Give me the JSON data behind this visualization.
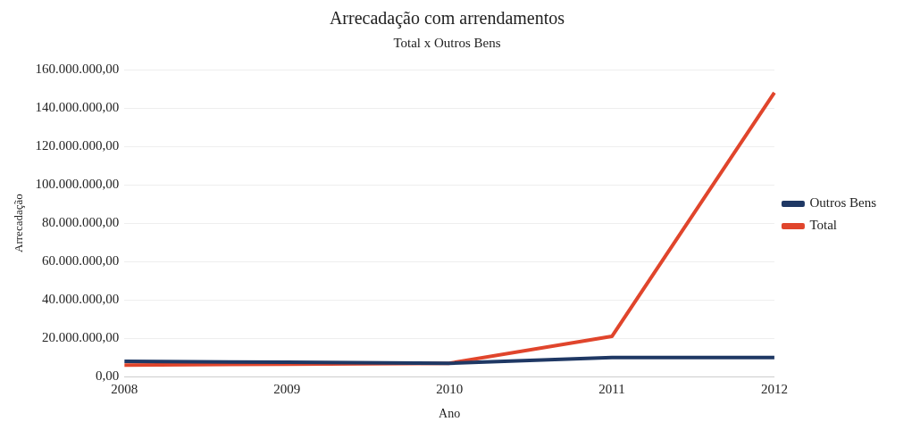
{
  "chart_data": {
    "type": "line",
    "title": "Arrecadação com arrendamentos",
    "subtitle": "Total x Outros Bens",
    "xlabel": "Ano",
    "ylabel": "Arrecadação",
    "categories": [
      "2008",
      "2009",
      "2010",
      "2011",
      "2012"
    ],
    "series": [
      {
        "name": "Outros Bens",
        "color": "#1f3864",
        "values": [
          8000000,
          7500000,
          7000000,
          10000000,
          10000000
        ]
      },
      {
        "name": "Total",
        "color": "#e0452c",
        "values": [
          6000000,
          6500000,
          7000000,
          21000000,
          148000000
        ]
      }
    ],
    "ylim": [
      0,
      160000000
    ],
    "yticks": [
      {
        "value": 0,
        "label": "0,00"
      },
      {
        "value": 20000000,
        "label": "20.000.000,00"
      },
      {
        "value": 40000000,
        "label": "40.000.000,00"
      },
      {
        "value": 60000000,
        "label": "60.000.000,00"
      },
      {
        "value": 80000000,
        "label": "80.000.000,00"
      },
      {
        "value": 100000000,
        "label": "100.000.000,00"
      },
      {
        "value": 120000000,
        "label": "120.000.000,00"
      },
      {
        "value": 140000000,
        "label": "140.000.000,00"
      },
      {
        "value": 160000000,
        "label": "160.000.000,00"
      }
    ],
    "grid": "y",
    "legend": "right",
    "marker": "none"
  }
}
